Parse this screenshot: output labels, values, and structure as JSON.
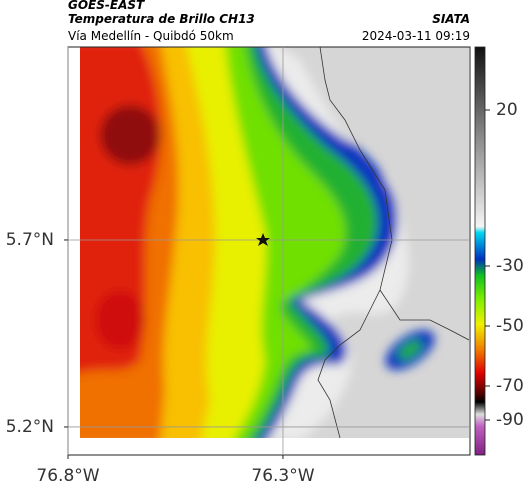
{
  "header": {
    "source": "GOES-EAST",
    "title": "Temperatura de Brillo CH13",
    "brand": "SIATA",
    "subtitle": "Vía Medellín - Quibdó 50km",
    "datetime": "2024-03-11 09:19"
  },
  "map": {
    "xlim": [
      -76.8,
      -75.865
    ],
    "ylim": [
      5.125,
      6.216
    ],
    "xticks": [
      {
        "value": -76.8,
        "label": "76.8°W"
      },
      {
        "value": -76.3,
        "label": "76.3°W"
      }
    ],
    "yticks": [
      {
        "value": 5.7,
        "label": "5.7°N"
      },
      {
        "value": 5.2,
        "label": "5.2°N"
      }
    ]
  },
  "colorbar": {
    "ticks": [
      20,
      -30,
      -50,
      -70,
      -90
    ]
  }
}
